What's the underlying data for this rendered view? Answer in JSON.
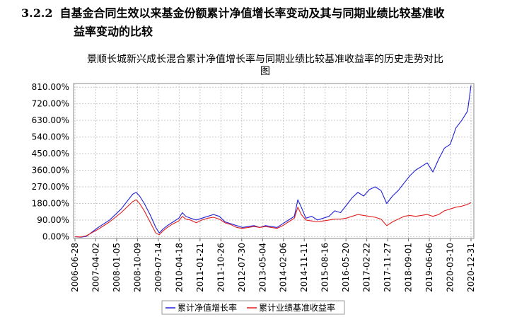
{
  "heading": {
    "number": "3.2.2",
    "line1": "自基金合同生效以来基金份额累计净值增长率变动及其与同期业绩比较基准收",
    "line2": "益率变动的比较"
  },
  "chart_data": {
    "type": "line",
    "title_line1": "景顺长城新兴成长混合累计净值增长率与同期业绩比较基准收益率的历史走势对比",
    "title_line2": "图",
    "y_ticks": [
      "810.00%",
      "720.00%",
      "630.00%",
      "540.00%",
      "450.00%",
      "360.00%",
      "270.00%",
      "180.00%",
      "90.00%",
      "0.00%"
    ],
    "y_values": [
      810,
      720,
      630,
      540,
      450,
      360,
      270,
      180,
      90,
      0
    ],
    "ylim": [
      -10,
      830
    ],
    "x_ticks": [
      "2006-06-28",
      "2007-04-02",
      "2008-01-05",
      "2008-10-09",
      "2009-07-14",
      "2010-04-18",
      "2011-01-21",
      "2011-10-26",
      "2012-07-30",
      "2013-05-04",
      "2014-02-06",
      "2014-11-11",
      "2015-08-16",
      "2016-05-20",
      "2017-02-22",
      "2017-11-27",
      "2018-09-01",
      "2019-06-06",
      "2020-03-10",
      "2020-12-31"
    ],
    "grid": true,
    "legend_position": "bottom",
    "series": [
      {
        "name": "累计净值增长率",
        "color": "#1f1fd6",
        "points": [
          [
            0,
            0
          ],
          [
            0.5,
            -3
          ],
          [
            1,
            2
          ],
          [
            2,
            50
          ],
          [
            3,
            90
          ],
          [
            4,
            150
          ],
          [
            5,
            230
          ],
          [
            5.3,
            240
          ],
          [
            5.6,
            220
          ],
          [
            6,
            180
          ],
          [
            6.5,
            120
          ],
          [
            7,
            50
          ],
          [
            7.3,
            20
          ],
          [
            7.6,
            40
          ],
          [
            8,
            60
          ],
          [
            8.5,
            80
          ],
          [
            9,
            100
          ],
          [
            9.3,
            130
          ],
          [
            9.6,
            110
          ],
          [
            10,
            100
          ],
          [
            10.5,
            90
          ],
          [
            11,
            100
          ],
          [
            11.5,
            110
          ],
          [
            12,
            120
          ],
          [
            12.5,
            110
          ],
          [
            13,
            80
          ],
          [
            13.5,
            70
          ],
          [
            14,
            60
          ],
          [
            14.5,
            50
          ],
          [
            15,
            55
          ],
          [
            15.5,
            60
          ],
          [
            16,
            50
          ],
          [
            16.5,
            60
          ],
          [
            17,
            55
          ],
          [
            17.5,
            50
          ],
          [
            18,
            70
          ],
          [
            18.5,
            90
          ],
          [
            19,
            110
          ],
          [
            19.3,
            200
          ],
          [
            19.6,
            160
          ],
          [
            20,
            100
          ],
          [
            20.5,
            110
          ],
          [
            21,
            90
          ],
          [
            21.5,
            100
          ],
          [
            22,
            110
          ],
          [
            22.5,
            140
          ],
          [
            23,
            130
          ],
          [
            23.5,
            170
          ],
          [
            24,
            210
          ],
          [
            24.5,
            240
          ],
          [
            25,
            220
          ],
          [
            25.5,
            255
          ],
          [
            26,
            270
          ],
          [
            26.5,
            250
          ],
          [
            27,
            180
          ],
          [
            27.5,
            220
          ],
          [
            28,
            250
          ],
          [
            28.5,
            290
          ],
          [
            29,
            330
          ],
          [
            29.5,
            360
          ],
          [
            30,
            380
          ],
          [
            30.5,
            400
          ],
          [
            31,
            350
          ],
          [
            31.5,
            420
          ],
          [
            32,
            480
          ],
          [
            32.5,
            500
          ],
          [
            33,
            590
          ],
          [
            33.5,
            630
          ],
          [
            34,
            680
          ],
          [
            34.3,
            820
          ]
        ]
      },
      {
        "name": "累计业绩基准收益率",
        "color": "#e02020",
        "points": [
          [
            0,
            0
          ],
          [
            0.5,
            -2
          ],
          [
            1,
            5
          ],
          [
            2,
            40
          ],
          [
            3,
            80
          ],
          [
            4,
            130
          ],
          [
            5,
            190
          ],
          [
            5.3,
            200
          ],
          [
            5.6,
            180
          ],
          [
            6,
            140
          ],
          [
            6.5,
            80
          ],
          [
            7,
            20
          ],
          [
            7.3,
            10
          ],
          [
            7.6,
            30
          ],
          [
            8,
            50
          ],
          [
            8.5,
            70
          ],
          [
            9,
            85
          ],
          [
            9.3,
            110
          ],
          [
            9.6,
            95
          ],
          [
            10,
            90
          ],
          [
            10.5,
            75
          ],
          [
            11,
            90
          ],
          [
            11.5,
            100
          ],
          [
            12,
            105
          ],
          [
            12.5,
            95
          ],
          [
            13,
            75
          ],
          [
            13.5,
            65
          ],
          [
            14,
            50
          ],
          [
            14.5,
            45
          ],
          [
            15,
            50
          ],
          [
            15.5,
            55
          ],
          [
            16,
            50
          ],
          [
            16.5,
            55
          ],
          [
            17,
            50
          ],
          [
            17.5,
            45
          ],
          [
            18,
            60
          ],
          [
            18.5,
            80
          ],
          [
            19,
            100
          ],
          [
            19.3,
            160
          ],
          [
            19.6,
            120
          ],
          [
            20,
            90
          ],
          [
            20.5,
            85
          ],
          [
            21,
            80
          ],
          [
            21.5,
            85
          ],
          [
            22,
            90
          ],
          [
            22.5,
            95
          ],
          [
            23,
            95
          ],
          [
            23.5,
            100
          ],
          [
            24,
            110
          ],
          [
            24.5,
            120
          ],
          [
            25,
            115
          ],
          [
            25.5,
            110
          ],
          [
            26,
            105
          ],
          [
            26.5,
            95
          ],
          [
            27,
            60
          ],
          [
            27.5,
            80
          ],
          [
            28,
            95
          ],
          [
            28.5,
            110
          ],
          [
            29,
            115
          ],
          [
            29.5,
            110
          ],
          [
            30,
            115
          ],
          [
            30.5,
            120
          ],
          [
            31,
            110
          ],
          [
            31.5,
            120
          ],
          [
            32,
            140
          ],
          [
            32.5,
            150
          ],
          [
            33,
            160
          ],
          [
            33.5,
            165
          ],
          [
            34,
            175
          ],
          [
            34.3,
            185
          ]
        ]
      }
    ]
  }
}
